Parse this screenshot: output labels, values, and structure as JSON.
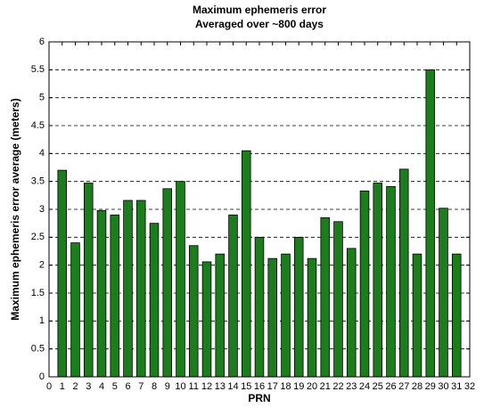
{
  "chart_data": {
    "type": "bar",
    "title": [
      "Maximum ephemeris error",
      "Averaged over ~800 days"
    ],
    "xlabel": "PRN",
    "ylabel": "Maximum ephemeris error average (meters)",
    "x": [
      1,
      2,
      3,
      4,
      5,
      6,
      7,
      8,
      9,
      10,
      11,
      12,
      13,
      14,
      15,
      16,
      17,
      18,
      19,
      20,
      21,
      22,
      23,
      24,
      25,
      26,
      27,
      28,
      29,
      30,
      31
    ],
    "values": [
      3.7,
      2.4,
      3.47,
      2.98,
      2.9,
      3.16,
      3.16,
      2.75,
      3.37,
      3.5,
      2.35,
      2.06,
      2.2,
      2.9,
      4.05,
      2.5,
      2.12,
      2.2,
      2.5,
      2.12,
      2.85,
      2.78,
      2.3,
      3.33,
      3.47,
      3.41,
      3.72,
      2.2,
      5.5,
      3.02,
      2.2
    ],
    "color": "#1b7d1b",
    "xlim": [
      0,
      32
    ],
    "xticks": [
      0,
      1,
      2,
      3,
      4,
      5,
      6,
      7,
      8,
      9,
      10,
      11,
      12,
      13,
      14,
      15,
      16,
      17,
      18,
      19,
      20,
      21,
      22,
      23,
      24,
      25,
      26,
      27,
      28,
      29,
      30,
      31,
      32
    ],
    "ylim": [
      0,
      6
    ],
    "yticks": [
      0,
      0.5,
      1,
      1.5,
      2,
      2.5,
      3,
      3.5,
      4,
      4.5,
      5,
      5.5,
      6
    ],
    "grid": "y"
  }
}
